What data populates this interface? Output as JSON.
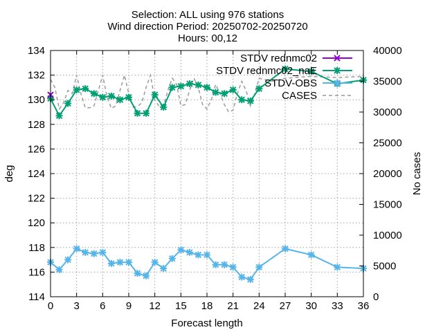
{
  "chart_data": {
    "type": "line",
    "title_lines": [
      "Selection: ALL using   976 stations",
      "Wind direction   Period: 20250702-20250720",
      "Hours: 00,12"
    ],
    "xlabel": "Forecast length",
    "ylabel": "deg",
    "y2label": "No cases",
    "xlim": [
      0,
      36
    ],
    "ylim": [
      114,
      134
    ],
    "y2lim": [
      0,
      40000
    ],
    "x_ticks": [
      0,
      3,
      6,
      9,
      12,
      15,
      18,
      21,
      24,
      27,
      30,
      33,
      36
    ],
    "y_ticks": [
      114,
      116,
      118,
      120,
      122,
      124,
      126,
      128,
      130,
      132,
      134
    ],
    "y2_ticks": [
      0,
      5000,
      10000,
      15000,
      20000,
      25000,
      30000,
      35000,
      40000
    ],
    "grid": true,
    "legend_position": "top-right",
    "x": [
      0,
      1,
      2,
      3,
      4,
      5,
      6,
      7,
      8,
      9,
      10,
      11,
      12,
      13,
      14,
      15,
      16,
      17,
      18,
      19,
      20,
      21,
      22,
      23,
      24,
      27,
      30,
      33,
      36
    ],
    "series": [
      {
        "name": "STDV rednmc02",
        "color": "#9400d3",
        "marker": "x",
        "values": [
          130.4,
          null,
          null,
          null,
          null,
          null,
          null,
          null,
          null,
          null,
          null,
          null,
          null,
          null,
          null,
          null,
          null,
          null,
          null,
          null,
          null,
          null,
          null,
          null,
          null,
          null,
          null,
          null,
          null
        ]
      },
      {
        "name": "STDV rednmc02_naE",
        "color": "#009e73",
        "marker": "star",
        "values": [
          130.1,
          128.7,
          129.7,
          130.8,
          130.9,
          130.5,
          130.2,
          130.3,
          130.0,
          130.2,
          128.9,
          128.9,
          130.4,
          129.4,
          131.0,
          131.1,
          131.3,
          131.2,
          131.0,
          130.6,
          130.5,
          130.8,
          130.0,
          129.9,
          130.9,
          132.5,
          132.3,
          131.3,
          131.6
        ]
      },
      {
        "name": "STDV-OBS",
        "color": "#56b4e9",
        "marker": "star",
        "values": [
          116.8,
          116.2,
          117.0,
          117.9,
          117.6,
          117.5,
          117.6,
          116.7,
          116.8,
          116.8,
          115.9,
          115.7,
          116.8,
          116.3,
          117.1,
          117.8,
          117.6,
          117.4,
          117.4,
          116.6,
          116.6,
          116.4,
          115.6,
          115.4,
          116.4,
          117.9,
          117.4,
          116.4,
          116.3
        ]
      },
      {
        "name": "CASES",
        "color": "#999999",
        "marker": "none",
        "axis": "y2",
        "dashed": true,
        "x": [
          0,
          0.5,
          1,
          1.5,
          2,
          2.5,
          3,
          3.5,
          4,
          4.5,
          5,
          5.5,
          6,
          6.5,
          7,
          7.5,
          8,
          8.5,
          9,
          9.5,
          10,
          10.5,
          11,
          11.5,
          12,
          12.5,
          13,
          13.5,
          14,
          14.5,
          15,
          15.5,
          16,
          16.5,
          17,
          17.5,
          18,
          18.5,
          19,
          19.5,
          20,
          20.5,
          21,
          21.5,
          22,
          22.5,
          23,
          23.5,
          24,
          25.5,
          27,
          30,
          33,
          36
        ],
        "values": [
          35300,
          34000,
          30500,
          31500,
          33500,
          33000,
          36000,
          33000,
          30700,
          30700,
          31000,
          33500,
          36000,
          32500,
          30600,
          31000,
          33500,
          36000,
          33000,
          30800,
          30900,
          31500,
          34000,
          36000,
          32000,
          30900,
          31000,
          33500,
          35500,
          34500,
          31000,
          31200,
          33500,
          35500,
          34000,
          31200,
          30500,
          32000,
          34500,
          33000,
          31200,
          30000,
          30300,
          33000,
          35000,
          33500,
          31000,
          33000,
          35500,
          35000,
          35500,
          35800,
          35600,
          35800
        ]
      }
    ]
  }
}
